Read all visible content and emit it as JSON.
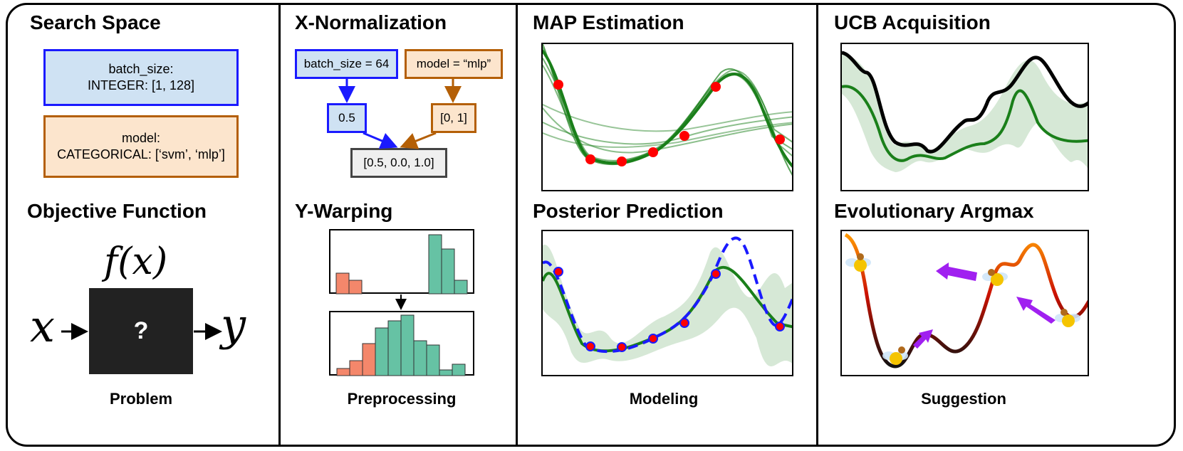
{
  "problem": {
    "search_space_title": "Search Space",
    "param1": {
      "name": "batch_size:",
      "spec": "INTEGER: [1, 128]"
    },
    "param2": {
      "name": "model:",
      "spec": "CATEGORICAL: [‘svm’, ‘mlp’]"
    },
    "objective_title": "Objective Function",
    "fx": "f(x)",
    "x_label": "x",
    "y_label": "y",
    "blackbox": "?",
    "footer": "Problem"
  },
  "preprocessing": {
    "xnorm_title": "X-Normalization",
    "batch_box": "batch_size = 64",
    "model_box": "model = “mlp”",
    "norm_batch": "0.5",
    "norm_model": "[0, 1]",
    "vector": "[0.5, 0.0, 1.0]",
    "ywarp_title": "Y-Warping",
    "footer": "Preprocessing"
  },
  "modeling": {
    "map_title": "MAP Estimation",
    "posterior_title": "Posterior Prediction",
    "footer": "Modeling"
  },
  "suggestion": {
    "ucb_title": "UCB Acquisition",
    "evo_title": "Evolutionary Argmax",
    "footer": "Suggestion"
  },
  "colors": {
    "blue_border": "#1a1aff",
    "blue_fill": "#cfe2f3",
    "orange_border": "#b45f06",
    "orange_fill": "#fce5cd",
    "green": "#1a7f1a",
    "red_point": "#ff0000",
    "hist_orange": "#f4876b",
    "hist_teal": "#66c2a4",
    "purple_arrow": "#a020f0"
  },
  "icons": [
    "arrow-down-icon",
    "arrow-right-icon",
    "bee-icon",
    "purple-arrow-icon"
  ]
}
